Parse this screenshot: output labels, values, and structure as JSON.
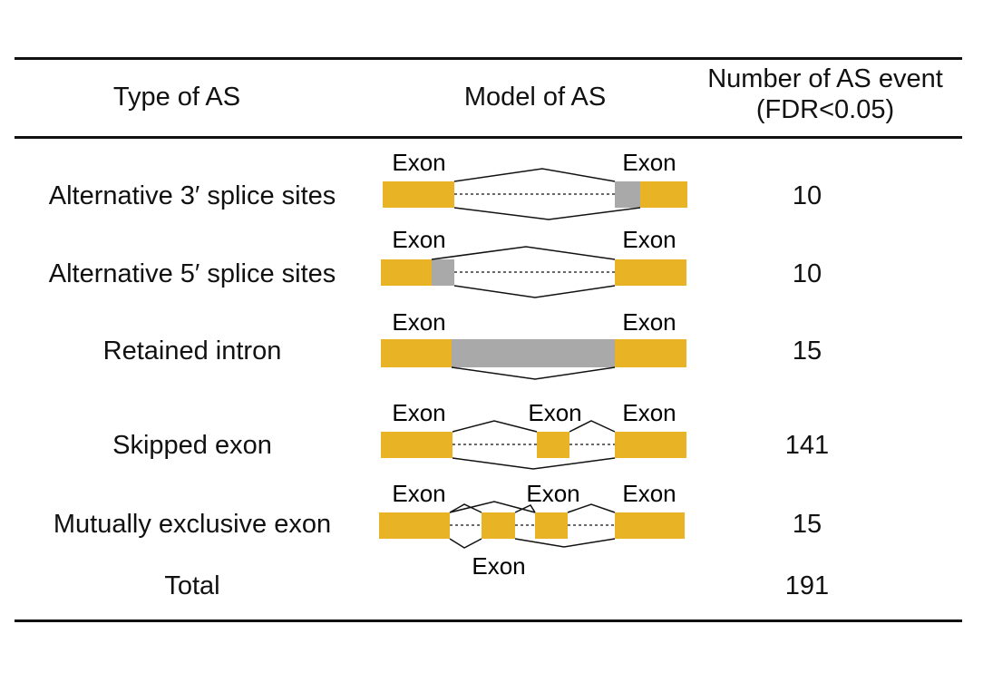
{
  "table": {
    "headers": {
      "type": "Type of AS",
      "model": "Model of AS",
      "number_line1": "Number of AS event",
      "number_line2": "(FDR<0.05)"
    },
    "exon_label": "Exon",
    "rows": [
      {
        "type": "Alternative 3′ splice sites",
        "number": "10"
      },
      {
        "type": "Alternative 5′ splice sites",
        "number": "10"
      },
      {
        "type": "Retained intron",
        "number": "15"
      },
      {
        "type": "Skipped exon",
        "number": "141"
      },
      {
        "type": "Mutually exclusive exon",
        "number": "15"
      }
    ],
    "total": {
      "label": "Total",
      "number": "191"
    }
  },
  "colors": {
    "exon": "#E8B426",
    "alternative_region": "#A9A9A9"
  }
}
